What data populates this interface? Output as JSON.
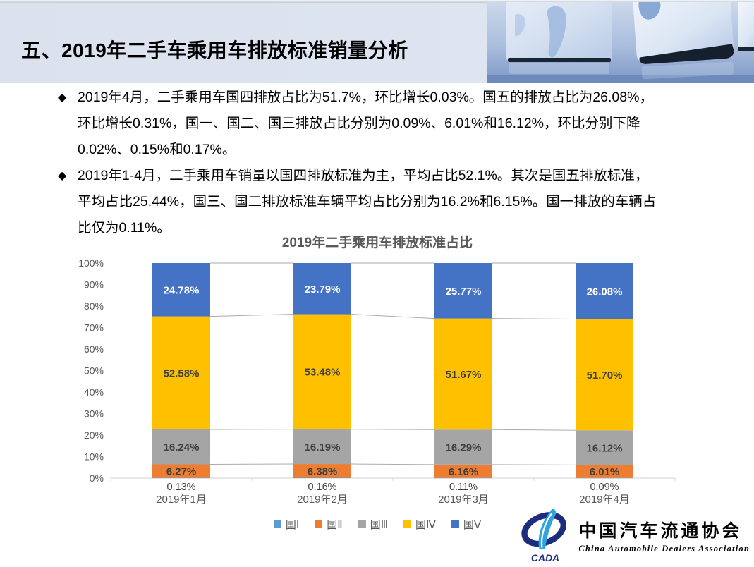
{
  "header": {
    "title": "五、2019年二手车乘用车排放标准销量分析"
  },
  "bullets": {
    "marker": "◆",
    "items": [
      {
        "lines": [
          "2019年4月，二手乘用车国四排放占比为51.7%，环比增长0.03%。国五的排放占比为26.08%，",
          "环比增长0.31%，国一、国二、国三排放占比分别为0.09%、6.01%和16.12%，环比分别下降",
          "0.02%、0.15%和0.17%。"
        ]
      },
      {
        "lines": [
          "2019年1-4月，二手乘用车销量以国四排放标准为主，平均占比52.1%。其次是国五排放标准，",
          "平均占比25.44%，国三、国二排放标准车辆平均占比分别为16.2%和6.15%。国一排放的车辆占",
          "比仅为0.11%。"
        ]
      }
    ]
  },
  "chart_data": {
    "type": "bar",
    "variant": "stacked-percent-column",
    "title": "2019年二手乘用车排放标准占比",
    "categories": [
      "2019年1月",
      "2019年2月",
      "2019年3月",
      "2019年4月"
    ],
    "series": [
      {
        "name": "国Ⅰ",
        "color": "#5B9BD5",
        "values": [
          0.13,
          0.16,
          0.11,
          0.09
        ],
        "labels_below_axis": true,
        "label_color": "#404040"
      },
      {
        "name": "国Ⅱ",
        "color": "#ED7D31",
        "values": [
          6.27,
          6.38,
          6.16,
          6.01
        ],
        "label_color": "#3F3F3F"
      },
      {
        "name": "国Ⅲ",
        "color": "#A5A5A5",
        "values": [
          16.24,
          16.19,
          16.29,
          16.12
        ],
        "label_color": "#3F3F3F"
      },
      {
        "name": "国Ⅳ",
        "color": "#FFC000",
        "values": [
          52.58,
          53.48,
          51.67,
          51.7
        ],
        "label_color": "#3F3F3F"
      },
      {
        "name": "国Ⅴ",
        "color": "#4472C4",
        "values": [
          24.78,
          23.79,
          25.77,
          26.08
        ],
        "label_color": "#FFFFFF"
      }
    ],
    "ylim": [
      0,
      100
    ],
    "ytick_step": 10,
    "ytick_suffix": "%",
    "label_format": "2dp-percent",
    "grid": false,
    "series_connector_lines": true,
    "legend_position": "bottom",
    "axis_color": "#D9D9D9",
    "connector_color": "#ABABAB",
    "tick_label_color": "#595959"
  },
  "logo": {
    "acronym": "CADA",
    "name_cn": "中国汽车流通协会",
    "name_en": "China Automobile Dealers Association"
  }
}
